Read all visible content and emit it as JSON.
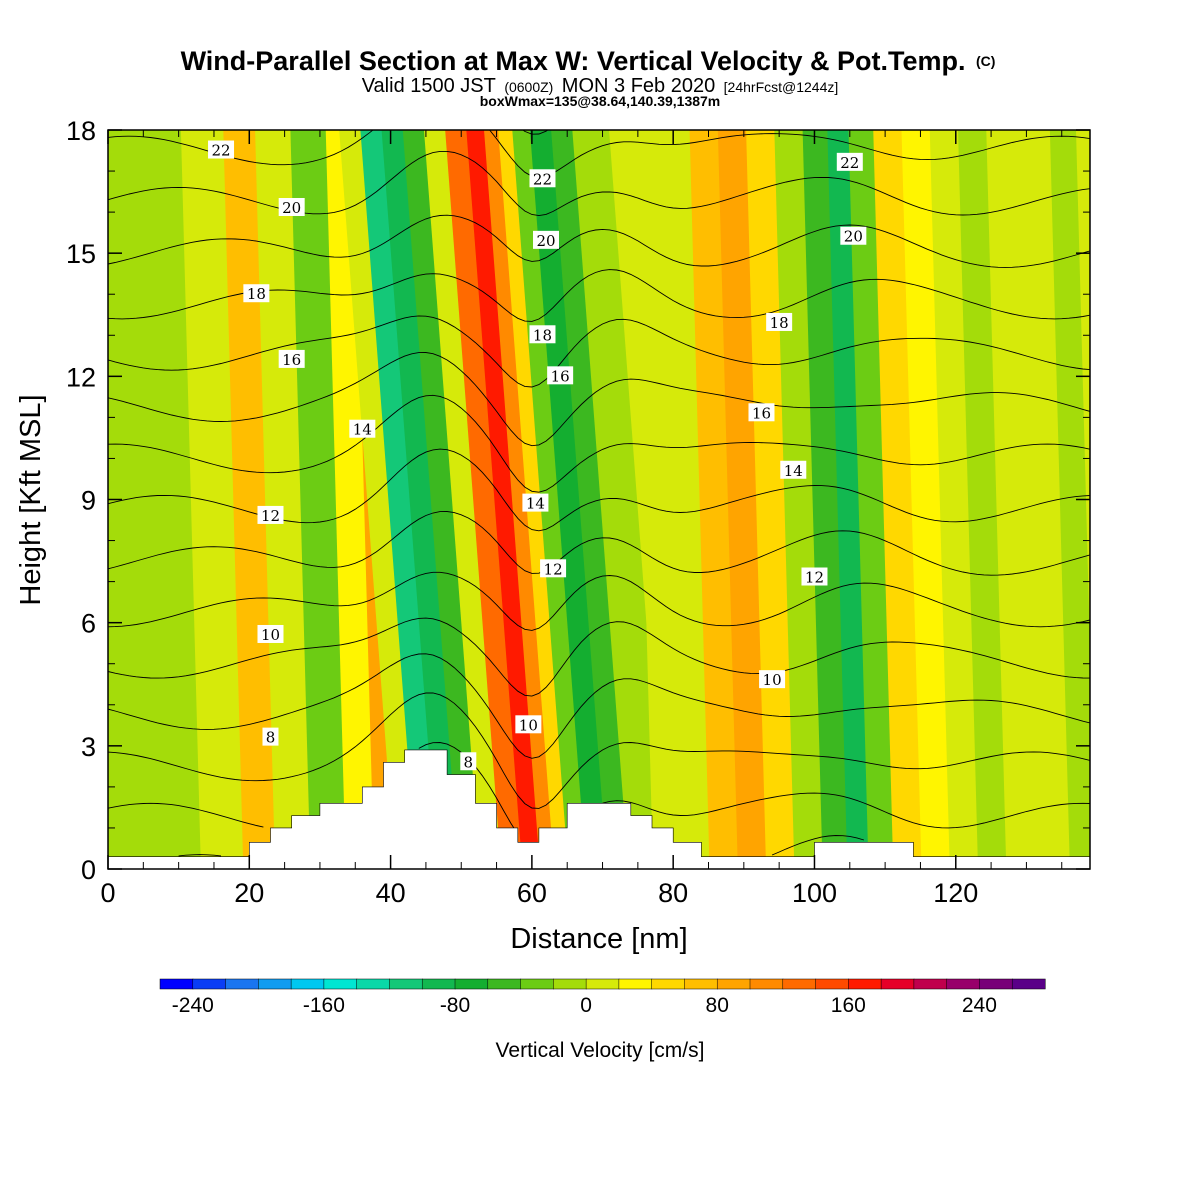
{
  "title": {
    "main": "Wind-Parallel Section at Max W: Vertical Velocity & Pot.Temp.",
    "main_suffix": "(C)",
    "sub_a": "Valid 1500 JST",
    "sub_b": "(0600Z)",
    "sub_c": "MON 3 Feb 2020",
    "sub_d": "[24hrFcst@1244z]",
    "line3": "boxWmax=135@38.64,140.39,1387m"
  },
  "chart_data": {
    "type": "heatmap",
    "xlabel": "Distance [nm]",
    "ylabel": "Height [Kft MSL]",
    "xlim": [
      0,
      139
    ],
    "ylim": [
      0,
      18
    ],
    "x_ticks": [
      "0",
      "20",
      "40",
      "60",
      "80",
      "100",
      "120"
    ],
    "y_ticks": [
      "0",
      "3",
      "6",
      "9",
      "12",
      "15",
      "18"
    ],
    "colorbar": {
      "label": "Vertical Velocity [cm/s]",
      "min": -260,
      "max": 280,
      "step": 20,
      "tick_labels": [
        "-240",
        "-160",
        "-80",
        "0",
        "80",
        "160",
        "240"
      ],
      "colors": [
        "#0000ff",
        "#0a3df5",
        "#1a75f0",
        "#109cf0",
        "#00c8f0",
        "#00e6d2",
        "#0ad8a8",
        "#14c878",
        "#12b850",
        "#14ae30",
        "#3cb820",
        "#6ccc14",
        "#a4dc0a",
        "#d6ea0a",
        "#fff500",
        "#ffd800",
        "#ffbe00",
        "#ffa400",
        "#ff8a00",
        "#ff6a00",
        "#ff4a00",
        "#ff1a00",
        "#e60028",
        "#c0004c",
        "#98006a",
        "#780078",
        "#5a0088"
      ]
    },
    "velocity_columns": {
      "x": [
        0,
        10,
        18,
        22,
        27,
        32,
        37,
        40,
        43,
        46,
        49,
        52,
        55,
        58,
        61,
        63,
        65,
        67,
        70,
        73,
        76,
        80,
        84,
        88,
        92,
        96,
        100,
        104,
        107,
        110,
        114,
        118,
        122,
        126,
        130,
        135,
        139
      ],
      "w_cm_s": [
        -10,
        -15,
        5,
        60,
        5,
        -40,
        20,
        90,
        5,
        -120,
        -100,
        -60,
        10,
        120,
        160,
        110,
        40,
        -40,
        -80,
        -60,
        -20,
        0,
        10,
        60,
        90,
        40,
        -10,
        -50,
        -100,
        -40,
        40,
        30,
        10,
        -10,
        0,
        15,
        -10
      ]
    },
    "potential_temperature": {
      "unit": "C",
      "levels": [
        2,
        3,
        4,
        5,
        6,
        7,
        8,
        9,
        10,
        11,
        12,
        13,
        14,
        15,
        16,
        17,
        18,
        19,
        20,
        21,
        22,
        23
      ],
      "labeled_levels": [
        8,
        10,
        12,
        14,
        16,
        18,
        20,
        22
      ],
      "labels": [
        {
          "text": "22",
          "x": 16,
          "y": 17.5
        },
        {
          "text": "20",
          "x": 26,
          "y": 16.1
        },
        {
          "text": "18",
          "x": 21,
          "y": 14.0
        },
        {
          "text": "16",
          "x": 26,
          "y": 12.4
        },
        {
          "text": "14",
          "x": 36,
          "y": 10.7
        },
        {
          "text": "12",
          "x": 23,
          "y": 8.6
        },
        {
          "text": "10",
          "x": 23,
          "y": 5.7
        },
        {
          "text": "8",
          "x": 23,
          "y": 3.2
        },
        {
          "text": "8",
          "x": 51,
          "y": 2.6
        },
        {
          "text": "22",
          "x": 61.5,
          "y": 16.8
        },
        {
          "text": "20",
          "x": 62,
          "y": 15.3
        },
        {
          "text": "18",
          "x": 61.5,
          "y": 13.0
        },
        {
          "text": "16",
          "x": 64,
          "y": 12.0
        },
        {
          "text": "14",
          "x": 60.5,
          "y": 8.9
        },
        {
          "text": "12",
          "x": 63,
          "y": 7.3
        },
        {
          "text": "10",
          "x": 59.5,
          "y": 3.5
        },
        {
          "text": "22",
          "x": 105,
          "y": 17.2
        },
        {
          "text": "20",
          "x": 105.5,
          "y": 15.4
        },
        {
          "text": "18",
          "x": 95,
          "y": 13.3
        },
        {
          "text": "16",
          "x": 92.5,
          "y": 11.1
        },
        {
          "text": "14",
          "x": 97,
          "y": 9.7
        },
        {
          "text": "12",
          "x": 100,
          "y": 7.1
        },
        {
          "text": "10",
          "x": 94,
          "y": 4.6
        }
      ]
    },
    "terrain_kft": {
      "x": [
        0,
        20,
        20,
        23,
        23,
        26,
        26,
        30,
        30,
        36,
        36,
        39,
        39,
        42,
        42,
        48,
        48,
        52,
        52,
        55,
        55,
        58,
        58,
        61,
        61,
        65,
        65,
        74,
        74,
        77,
        77,
        80,
        80,
        84,
        84,
        100,
        100,
        114,
        114,
        139
      ],
      "h": [
        0.3,
        0.3,
        0.65,
        0.65,
        1.0,
        1.0,
        1.3,
        1.3,
        1.6,
        1.6,
        2.0,
        2.0,
        2.6,
        2.6,
        2.9,
        2.9,
        2.3,
        2.3,
        1.6,
        1.6,
        1.0,
        1.0,
        0.65,
        0.65,
        1.0,
        1.0,
        1.6,
        1.6,
        1.3,
        1.3,
        1.0,
        1.0,
        0.65,
        0.65,
        0.3,
        0.3,
        0.65,
        0.65,
        0.3,
        0.3
      ]
    }
  }
}
